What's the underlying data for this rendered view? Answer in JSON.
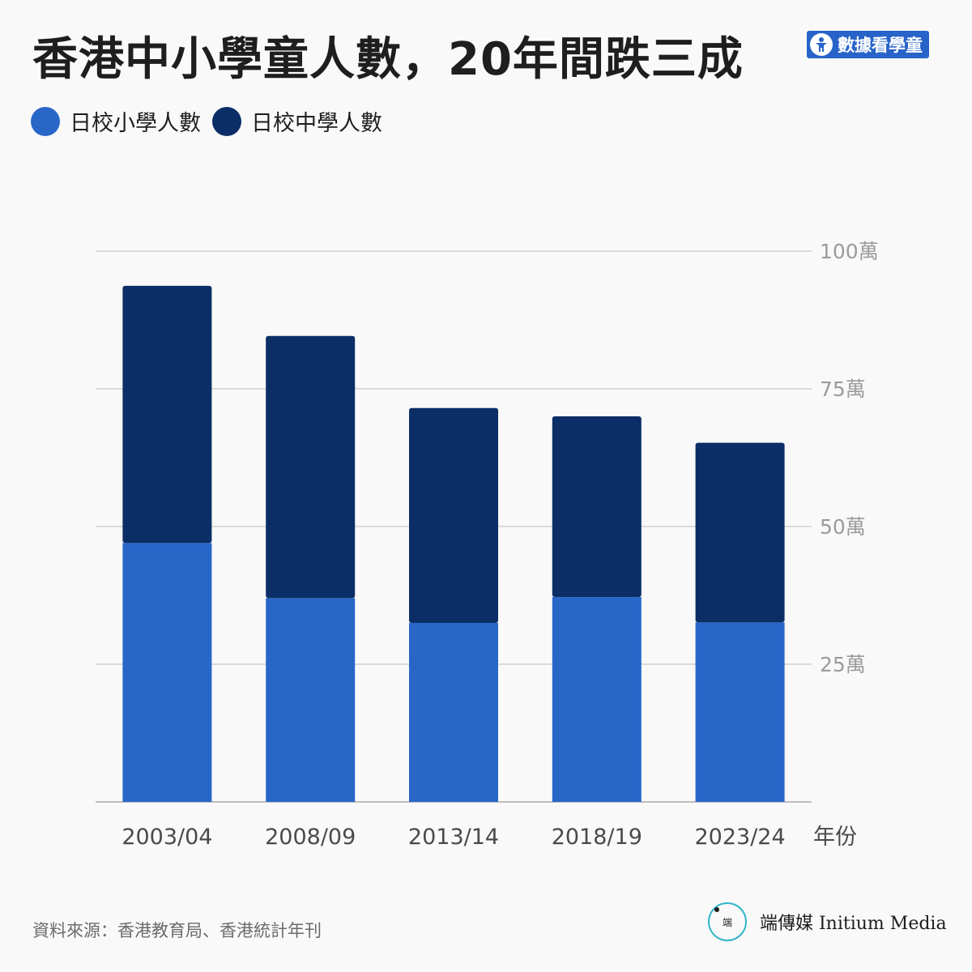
{
  "title": "香港中小學童人數，20年間跌三成",
  "badge": {
    "label": "數據看學童",
    "icon": "child-icon"
  },
  "colors": {
    "primary": "#2867c8",
    "secondary": "#0b2e66",
    "grid": "#cfcfcf",
    "background": "#f9f9f9"
  },
  "chart_data": {
    "type": "bar",
    "stacked": true,
    "categories": [
      "2003/04",
      "2008/09",
      "2013/14",
      "2018/19",
      "2023/24"
    ],
    "series": [
      {
        "name": "日校小學人數",
        "values": [
          47,
          37,
          32.5,
          37.2,
          32.6
        ]
      },
      {
        "name": "日校中學人數",
        "values": [
          46.7,
          47.6,
          39,
          32.8,
          32.6
        ]
      }
    ],
    "ylim": [
      0,
      100
    ],
    "yticks": [
      25,
      50,
      75,
      100
    ],
    "ytick_labels": [
      "25萬",
      "50萬",
      "75萬",
      "100萬"
    ],
    "xlabel": "年份",
    "grid": true,
    "legend_position": "top-left"
  },
  "source": "資料來源：香港教育局、香港統計年刊",
  "brand": {
    "logo_text": "端",
    "name": "端傳媒 Initium Media"
  }
}
